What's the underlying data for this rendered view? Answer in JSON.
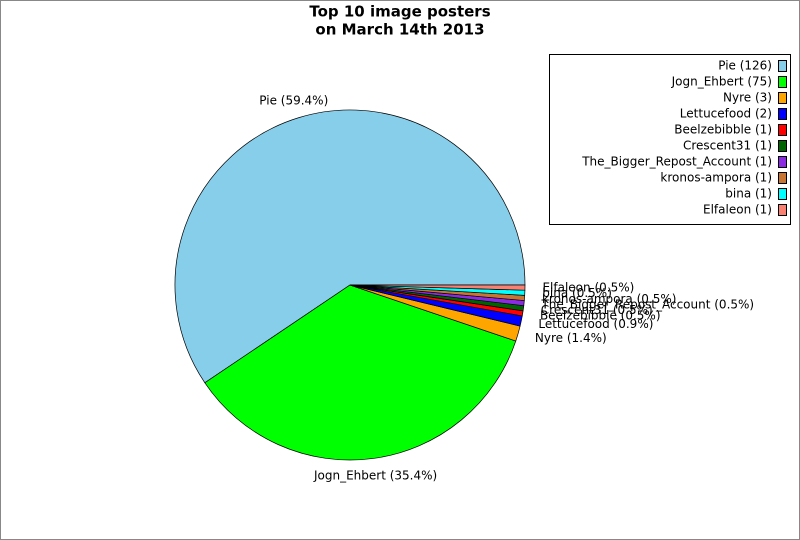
{
  "chart_data": {
    "type": "pie",
    "title": [
      "Top 10 image posters",
      "on March 14th 2013"
    ],
    "categories": [
      "Pie",
      "Jogn_Ehbert",
      "Nyre",
      "Lettucefood",
      "Beelzebibble",
      "Crescent31",
      "The_Bigger_Repost_Account",
      "kronos-ampora",
      "bina",
      "Elfaleon"
    ],
    "values": [
      126,
      75,
      3,
      2,
      1,
      1,
      1,
      1,
      1,
      1
    ],
    "value_labels": [
      "Pie (126)",
      "Jogn_Ehbert (75)",
      "Nyre (3)",
      "Lettucefood (2)",
      "Beelzebibble (1)",
      "Crescent31 (1)",
      "The_Bigger_Repost_Account (1)",
      "kronos-ampora (1)",
      "bina (1)",
      "Elfaleon (1)"
    ],
    "slice_labels": [
      "Pie (59.4%)",
      "Jogn_Ehbert (35.4%)",
      "Nyre (1.4%)",
      "Lettucefood (0.9%)",
      "Beelzebibble (0.5%)",
      "Crescent31 (0.5%)",
      "The_Bigger_Repost_Account (0.5%)",
      "kronos-ampora (0.5%)",
      "bina (0.5%)",
      "Elfaleon (0.5%)"
    ],
    "colors": [
      "#87ceeb",
      "#00ff00",
      "#ffa500",
      "#0000ff",
      "#ff0000",
      "#006400",
      "#8a2be2",
      "#c87533",
      "#00ffff",
      "#fa8072"
    ],
    "legend": "upper right"
  }
}
